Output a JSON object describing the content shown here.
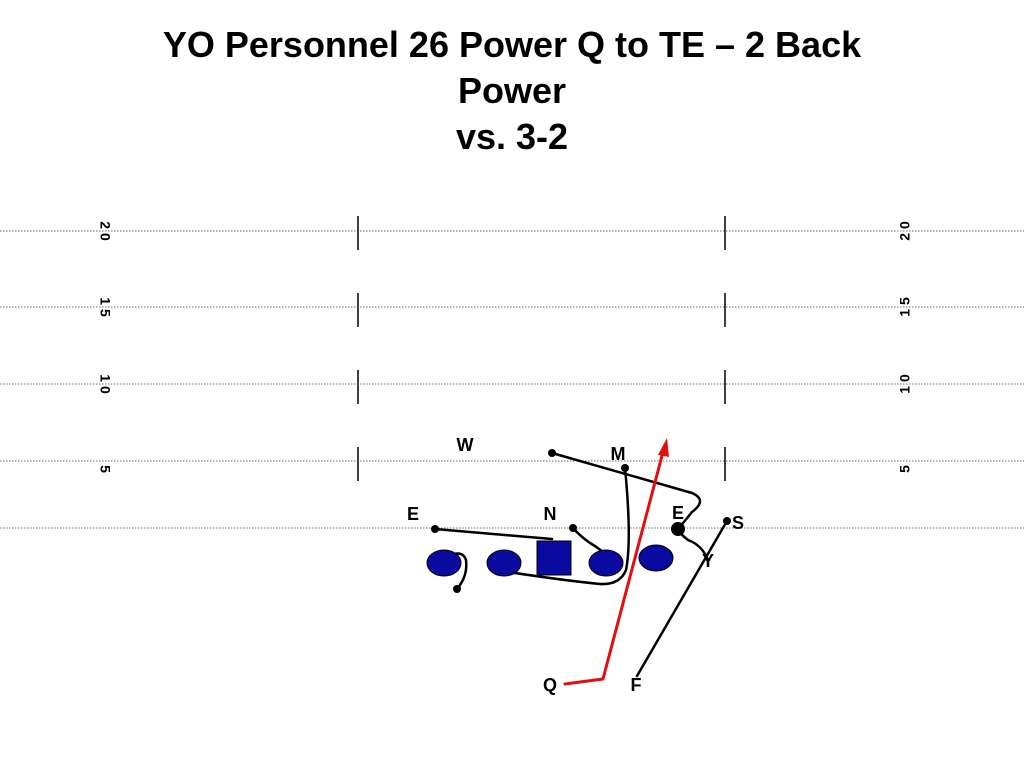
{
  "title": {
    "line1": "YO Personnel 26 Power Q to TE – 2 Back",
    "line2": "Power",
    "line3": "vs. 3-2"
  },
  "field": {
    "yard_numbers": [
      "2 0",
      "1 5",
      "1 0",
      "5"
    ]
  },
  "defense": {
    "W": "W",
    "M": "M",
    "E_left": "E",
    "N": "N",
    "E_right": "E",
    "S": "S"
  },
  "offense": {
    "Y": "Y",
    "Q": "Q",
    "F": "F"
  },
  "colors": {
    "lineman": "#0A0AA0",
    "ball_carrier_route": "#E01010",
    "block_line": "#000000"
  }
}
